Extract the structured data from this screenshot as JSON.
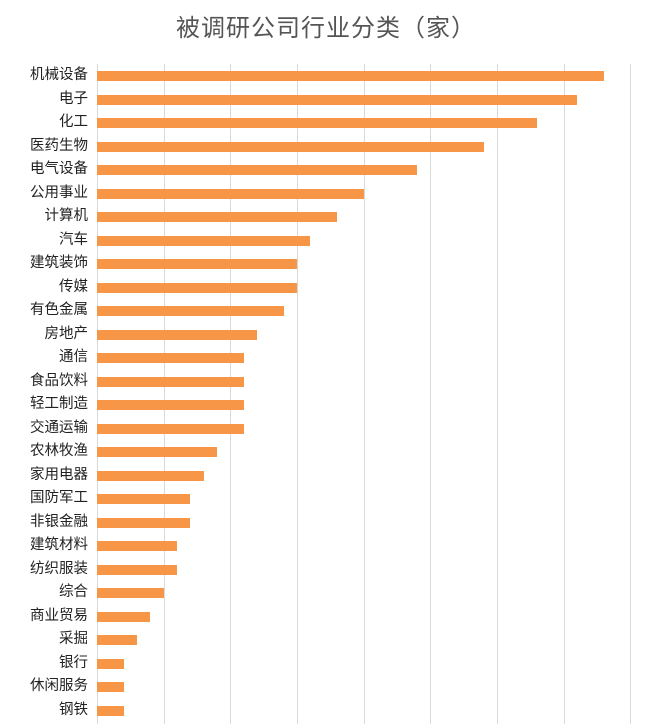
{
  "chart_data": {
    "type": "bar",
    "orientation": "horizontal",
    "title": "被调研公司行业分类（家）",
    "xlabel": "",
    "ylabel": "",
    "xlim": [
      0,
      40
    ],
    "grid_step": 5,
    "grid": true,
    "legend": "none",
    "bar_color": "#f79646",
    "categories": [
      "机械设备",
      "电子",
      "化工",
      "医药生物",
      "电气设备",
      "公用事业",
      "计算机",
      "汽车",
      "建筑装饰",
      "传媒",
      "有色金属",
      "房地产",
      "通信",
      "食品饮料",
      "轻工制造",
      "交通运输",
      "农林牧渔",
      "家用电器",
      "国防军工",
      "非银金融",
      "建筑材料",
      "纺织服装",
      "综合",
      "商业贸易",
      "采掘",
      "银行",
      "休闲服务",
      "钢铁"
    ],
    "values": [
      38,
      36,
      33,
      29,
      24,
      20,
      18,
      16,
      15,
      15,
      14,
      12,
      11,
      11,
      11,
      11,
      9,
      8,
      7,
      7,
      6,
      6,
      5,
      4,
      3,
      2,
      2,
      2
    ]
  }
}
